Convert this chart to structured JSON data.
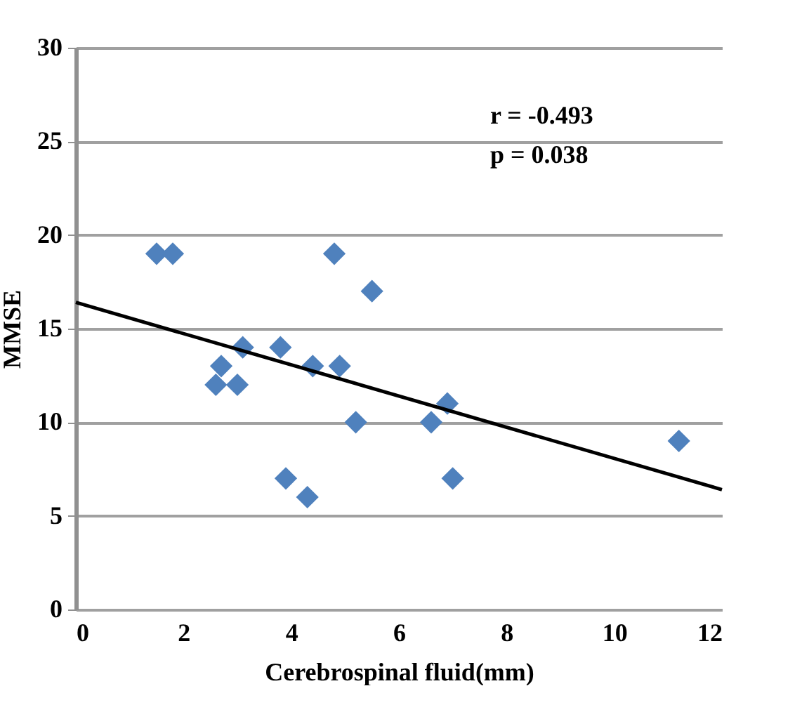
{
  "chart_data": {
    "type": "scatter",
    "xlabel": "Cerebrospinal fluid(mm)",
    "ylabel": "MMSE",
    "xlim": [
      0,
      12
    ],
    "xticks": [
      0,
      2,
      4,
      6,
      8,
      10,
      12
    ],
    "ylim": [
      0,
      30
    ],
    "yticks": [
      0,
      5,
      10,
      15,
      20,
      25,
      30
    ],
    "grid": "y",
    "marker": "diamond",
    "annotations": [
      "r = -0.493",
      "p =  0.038"
    ],
    "series": [
      {
        "color": "#4f81bd",
        "x": [
          1.5,
          1.8,
          4.8,
          5.5,
          3.1,
          3.8,
          2.7,
          2.6,
          3.0,
          4.4,
          4.9,
          5.2,
          6.6,
          6.9,
          3.9,
          4.3,
          7.0,
          11.2
        ],
        "values": [
          19,
          19,
          19,
          17,
          14,
          14,
          13,
          12,
          12,
          13,
          13,
          10,
          10,
          11,
          7,
          6,
          7,
          9
        ]
      },
      {
        "type": "line",
        "marker": "none",
        "color": "#000000",
        "x": [
          0,
          12
        ],
        "values": [
          16.4,
          6.4
        ]
      }
    ]
  }
}
